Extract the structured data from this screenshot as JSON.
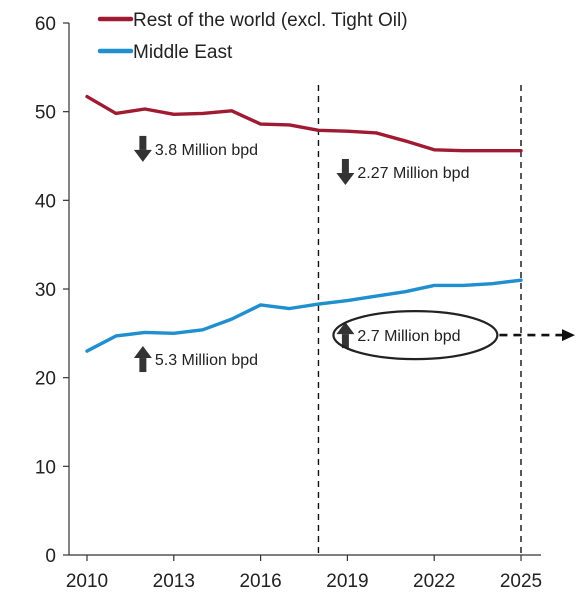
{
  "chart_data": {
    "type": "line",
    "title": "",
    "xlabel": "",
    "ylabel": "",
    "x": [
      2010,
      2011,
      2012,
      2013,
      2014,
      2015,
      2016,
      2017,
      2018,
      2019,
      2020,
      2021,
      2022,
      2023,
      2024,
      2025
    ],
    "xlim": [
      2010,
      2025
    ],
    "x_ticks": [
      "2010",
      "2013",
      "2016",
      "2019",
      "2022",
      "2025"
    ],
    "ylim": [
      0,
      60
    ],
    "y_ticks": [
      "0",
      "10",
      "20",
      "30",
      "40",
      "50",
      "60"
    ],
    "grid": false,
    "legend_position": "top",
    "series": [
      {
        "name": "Rest of the world (excl. Tight Oil)",
        "color": "#9e1b32",
        "values": [
          51.7,
          49.8,
          50.3,
          49.7,
          49.8,
          50.1,
          48.6,
          48.5,
          47.9,
          47.8,
          47.6,
          46.7,
          45.7,
          45.6,
          45.6,
          45.6
        ]
      },
      {
        "name": "Middle East",
        "color": "#1f8fcf",
        "values": [
          23.0,
          24.7,
          25.1,
          25.0,
          25.4,
          26.6,
          28.2,
          27.8,
          28.3,
          28.7,
          29.2,
          29.7,
          30.4,
          30.4,
          30.6,
          31.0
        ]
      }
    ],
    "reference_lines_x": [
      2018,
      2025
    ],
    "annotations": [
      {
        "text": "3.8 Million bpd",
        "direction": "down",
        "x": 2012,
        "y": 45.8,
        "circled": false
      },
      {
        "text": "2.27 Million bpd",
        "direction": "down",
        "x": 2019,
        "y": 43.2,
        "circled": false
      },
      {
        "text": "5.3 Million bpd",
        "direction": "up",
        "x": 2012,
        "y": 22.1,
        "circled": false
      },
      {
        "text": "2.7 Million bpd",
        "direction": "up",
        "x": 2019,
        "y": 24.8,
        "circled": true
      }
    ],
    "colors": {
      "axis": "#333333",
      "arrow_icon": "#333333",
      "reference_line": "#111111",
      "ellipse": "#222222"
    }
  }
}
